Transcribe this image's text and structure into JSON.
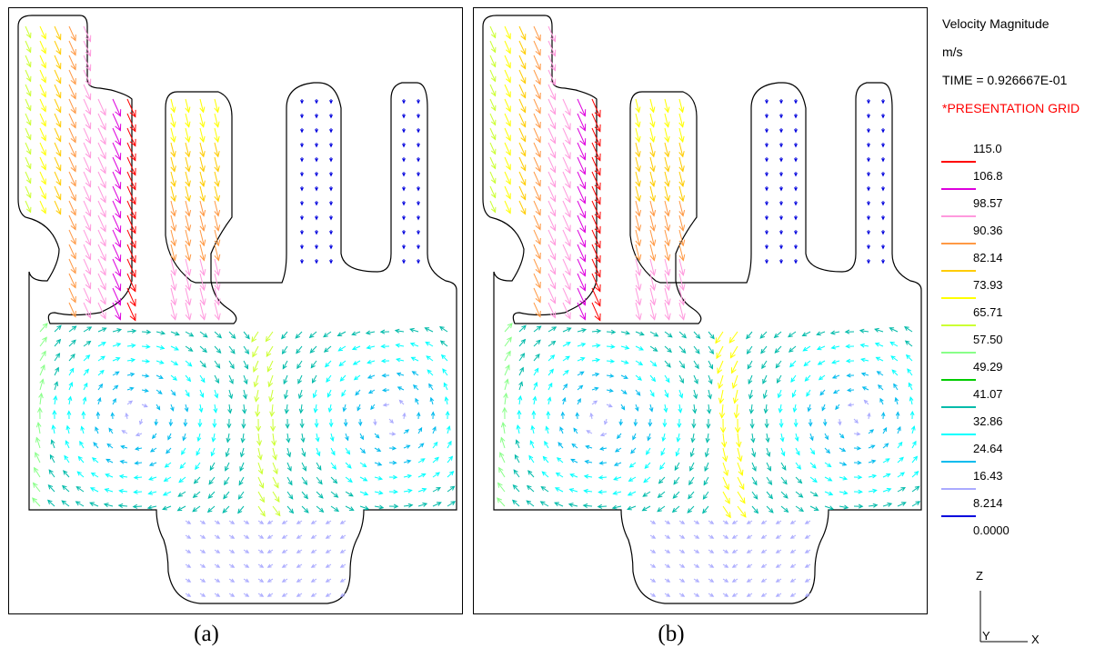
{
  "panels": [
    {
      "id": "a",
      "caption": "(a)"
    },
    {
      "id": "b",
      "caption": "(b)"
    }
  ],
  "legend": {
    "title": "Velocity Magnitude",
    "units": "m/s",
    "time": "TIME = 0.926667E-01",
    "grid_label": "*PRESENTATION GRID",
    "grid_label_color": "#ff0000",
    "levels": [
      {
        "label": "115.0",
        "color": "#ff0000"
      },
      {
        "label": "106.8",
        "color": "#dd00dd"
      },
      {
        "label": "98.57",
        "color": "#ff99dd"
      },
      {
        "label": "90.36",
        "color": "#ff9944"
      },
      {
        "label": "82.14",
        "color": "#ffcc00"
      },
      {
        "label": "73.93",
        "color": "#ffff00"
      },
      {
        "label": "65.71",
        "color": "#ccff33"
      },
      {
        "label": "57.50",
        "color": "#88ff88"
      },
      {
        "label": "49.29",
        "color": "#00cc00"
      },
      {
        "label": "41.07",
        "color": "#00bbaa"
      },
      {
        "label": "32.86",
        "color": "#00ffff"
      },
      {
        "label": "24.64",
        "color": "#00bbee"
      },
      {
        "label": "16.43",
        "color": "#aaaaff"
      },
      {
        "label": "8.214",
        "color": "#0000dd"
      },
      {
        "label": "0.0000",
        "color": null
      }
    ]
  },
  "axes": {
    "z": "Z",
    "y": "Y",
    "x": "X"
  }
}
